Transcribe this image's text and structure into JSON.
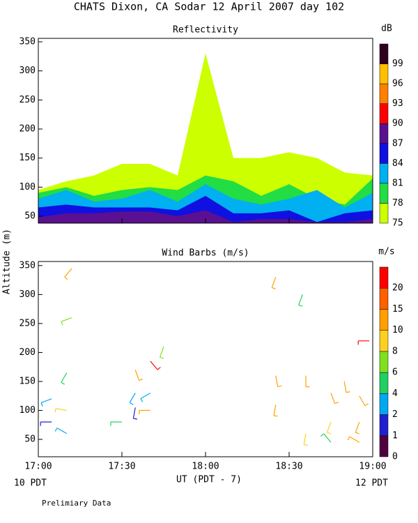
{
  "title": "CHATS Dixon, CA  Sodar  12 April 2007  day 102",
  "y_label": "Altitude (m)",
  "x_label": "UT  (PDT - 7)",
  "left_note": "10 PDT",
  "right_note": "12 PDT",
  "footer": "Prelimiary Data",
  "chart_data": [
    {
      "type": "contour",
      "title": "Reflectivity",
      "unit": "dB",
      "x": [
        17.0,
        17.1667,
        17.3333,
        17.5,
        17.6667,
        17.8333,
        18.0,
        18.1667,
        18.3333,
        18.5,
        18.6667,
        18.8333,
        19.0
      ],
      "levels": [
        75,
        78,
        81,
        84,
        87,
        90,
        93,
        96,
        99
      ],
      "colors": [
        "#ccff00",
        "#22dd44",
        "#00b0f0",
        "#1010e0",
        "#5a1090",
        "#ff0000",
        "#ff8000",
        "#ffc000",
        "#300020"
      ],
      "contours": [
        {
          "level": 75,
          "top": [
            95,
            110,
            120,
            140,
            140,
            120,
            330,
            150,
            150,
            160,
            150,
            125,
            120
          ]
        },
        {
          "level": 78,
          "top": [
            90,
            100,
            85,
            95,
            100,
            95,
            120,
            110,
            85,
            105,
            80,
            70,
            115
          ]
        },
        {
          "level": 81,
          "top": [
            80,
            95,
            75,
            80,
            95,
            75,
            105,
            80,
            70,
            80,
            95,
            65,
            90
          ]
        },
        {
          "level": 84,
          "top": [
            65,
            70,
            65,
            65,
            65,
            60,
            85,
            55,
            55,
            60,
            40,
            55,
            60
          ]
        },
        {
          "level": 87,
          "top": [
            48,
            55,
            55,
            58,
            58,
            50,
            60,
            40,
            45,
            45,
            40,
            40,
            45
          ]
        }
      ],
      "xlim": [
        17,
        19
      ],
      "ylim": [
        38,
        356
      ],
      "yticks": [
        50,
        100,
        150,
        200,
        250,
        300,
        350
      ],
      "xticks": [
        {
          "value": 17,
          "label": "17:00"
        },
        {
          "value": 17.5,
          "label": "17:30"
        },
        {
          "value": 18,
          "label": "18:00"
        },
        {
          "value": 18.5,
          "label": "18:30"
        },
        {
          "value": 19,
          "label": "19:00"
        }
      ]
    },
    {
      "type": "barbs",
      "title": "Wind Barbs (m/s)",
      "unit": "m/s",
      "levels": [
        0,
        1,
        2,
        4,
        6,
        8,
        10,
        15,
        20
      ],
      "colors": [
        "#500040",
        "#2020d0",
        "#00a8f0",
        "#20d060",
        "#80e020",
        "#ffd020",
        "#ffa000",
        "#ff6000",
        "#ff0000"
      ],
      "barbs": [
        {
          "x": 17.08,
          "alt": 80,
          "speed": 1,
          "dir": 270
        },
        {
          "x": 17.08,
          "alt": 120,
          "speed": 3,
          "dir": 250
        },
        {
          "x": 17.17,
          "alt": 100,
          "speed": 8,
          "dir": 280
        },
        {
          "x": 17.17,
          "alt": 60,
          "speed": 3,
          "dir": 300
        },
        {
          "x": 17.17,
          "alt": 165,
          "speed": 5,
          "dir": 210
        },
        {
          "x": 17.2,
          "alt": 260,
          "speed": 6,
          "dir": 250
        },
        {
          "x": 17.2,
          "alt": 345,
          "speed": 12,
          "dir": 220
        },
        {
          "x": 17.5,
          "alt": 80,
          "speed": 4,
          "dir": 270
        },
        {
          "x": 17.58,
          "alt": 105,
          "speed": 1,
          "dir": 190
        },
        {
          "x": 17.58,
          "alt": 130,
          "speed": 3,
          "dir": 210
        },
        {
          "x": 17.58,
          "alt": 170,
          "speed": 12,
          "dir": 160
        },
        {
          "x": 17.67,
          "alt": 130,
          "speed": 2,
          "dir": 240
        },
        {
          "x": 17.67,
          "alt": 100,
          "speed": 10,
          "dir": 270
        },
        {
          "x": 17.67,
          "alt": 185,
          "speed": 20,
          "dir": 140
        },
        {
          "x": 17.75,
          "alt": 210,
          "speed": 6,
          "dir": 200
        },
        {
          "x": 18.42,
          "alt": 330,
          "speed": 12,
          "dir": 200
        },
        {
          "x": 18.42,
          "alt": 160,
          "speed": 12,
          "dir": 170
        },
        {
          "x": 18.42,
          "alt": 110,
          "speed": 10,
          "dir": 190
        },
        {
          "x": 18.58,
          "alt": 300,
          "speed": 4,
          "dir": 200
        },
        {
          "x": 18.6,
          "alt": 60,
          "speed": 9,
          "dir": 190
        },
        {
          "x": 18.6,
          "alt": 160,
          "speed": 10,
          "dir": 180
        },
        {
          "x": 18.75,
          "alt": 80,
          "speed": 9,
          "dir": 200
        },
        {
          "x": 18.75,
          "alt": 130,
          "speed": 10,
          "dir": 160
        },
        {
          "x": 18.75,
          "alt": 45,
          "speed": 5,
          "dir": 320
        },
        {
          "x": 18.83,
          "alt": 150,
          "speed": 12,
          "dir": 170
        },
        {
          "x": 18.92,
          "alt": 80,
          "speed": 12,
          "dir": 200
        },
        {
          "x": 18.92,
          "alt": 125,
          "speed": 10,
          "dir": 150
        },
        {
          "x": 18.92,
          "alt": 45,
          "speed": 10,
          "dir": 300
        },
        {
          "x": 18.98,
          "alt": 220,
          "speed": 20,
          "dir": 270
        }
      ],
      "xlim": [
        17,
        19
      ],
      "ylim": [
        20,
        357
      ],
      "yticks": [
        50,
        100,
        150,
        200,
        250,
        300,
        350
      ],
      "xticks": [
        {
          "value": 17,
          "label": "17:00"
        },
        {
          "value": 17.5,
          "label": "17:30"
        },
        {
          "value": 18,
          "label": "18:00"
        },
        {
          "value": 18.5,
          "label": "18:30"
        },
        {
          "value": 19,
          "label": "19:00"
        }
      ]
    }
  ]
}
